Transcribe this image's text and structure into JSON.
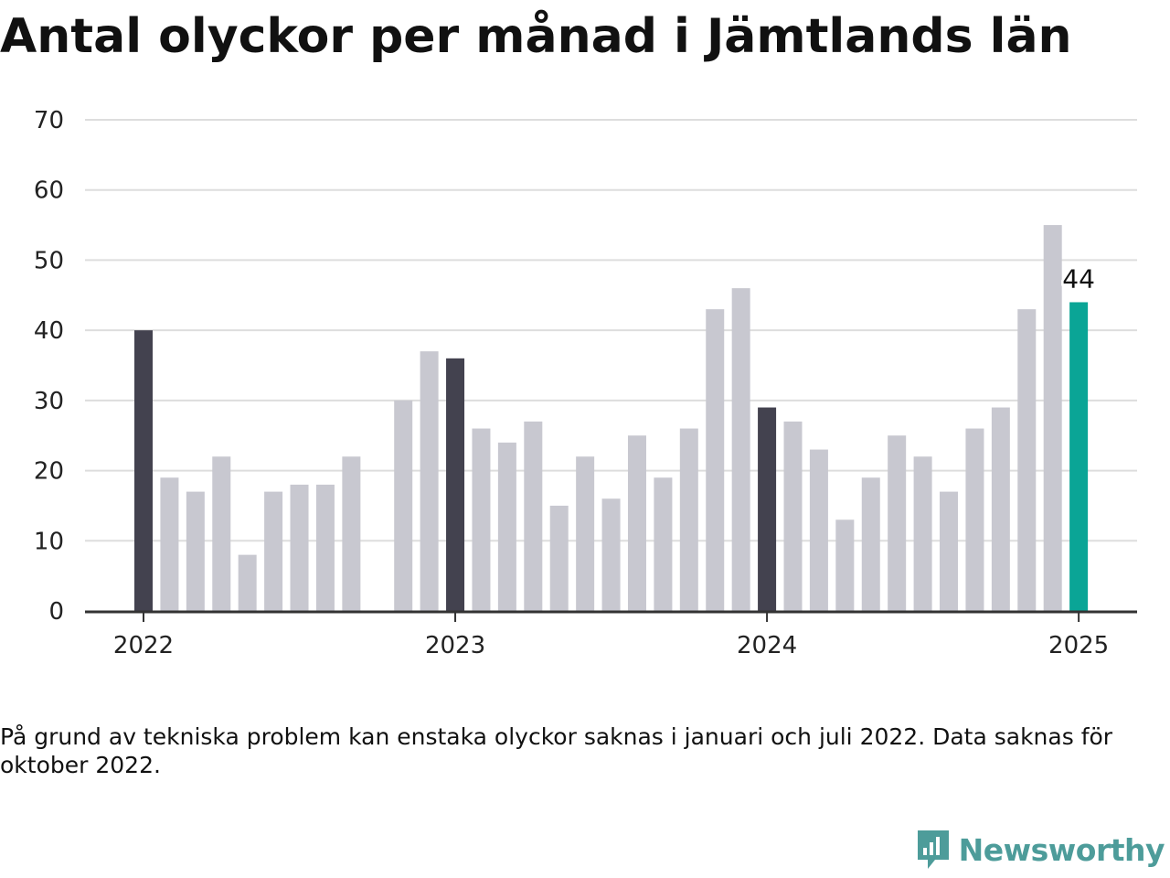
{
  "title": "Antal olyckor per månad i Jämtlands län",
  "note": "På grund av tekniska problem kan enstaka olyckor saknas i januari och juli 2022. Data saknas för oktober 2022.",
  "brand": {
    "name": "Newsworthy",
    "icon": "bar-chart-speech-bubble-icon",
    "color": "#4d9c9a"
  },
  "colors": {
    "january": "#43424f",
    "regular": "#c8c8d0",
    "highlight": "#0aa596",
    "grid": "#dddddd",
    "axis": "#333333"
  },
  "chart_data": {
    "type": "bar",
    "title": "Antal olyckor per månad i Jämtlands län",
    "xlabel": "",
    "ylabel": "",
    "ylim": [
      0,
      70
    ],
    "yticks": [
      0,
      10,
      20,
      30,
      40,
      50,
      60,
      70
    ],
    "xticks": [
      {
        "label": "2022",
        "index": 0
      },
      {
        "label": "2023",
        "index": 12
      },
      {
        "label": "2024",
        "index": 24
      },
      {
        "label": "2025",
        "index": 36
      }
    ],
    "categories": [
      "2022-01",
      "2022-02",
      "2022-03",
      "2022-04",
      "2022-05",
      "2022-06",
      "2022-07",
      "2022-08",
      "2022-09",
      "2022-10",
      "2022-11",
      "2022-12",
      "2023-01",
      "2023-02",
      "2023-03",
      "2023-04",
      "2023-05",
      "2023-06",
      "2023-07",
      "2023-08",
      "2023-09",
      "2023-10",
      "2023-11",
      "2023-12",
      "2024-01",
      "2024-02",
      "2024-03",
      "2024-04",
      "2024-05",
      "2024-06",
      "2024-07",
      "2024-08",
      "2024-09",
      "2024-10",
      "2024-11",
      "2024-12",
      "2025-01"
    ],
    "values": [
      40,
      19,
      17,
      22,
      8,
      17,
      18,
      18,
      22,
      null,
      30,
      37,
      36,
      26,
      24,
      27,
      15,
      22,
      16,
      25,
      19,
      26,
      43,
      46,
      29,
      27,
      23,
      13,
      19,
      25,
      22,
      17,
      26,
      29,
      43,
      55,
      44
    ],
    "highlight_index": 36,
    "highlight_label": "44",
    "grid": true,
    "legend": "none"
  }
}
